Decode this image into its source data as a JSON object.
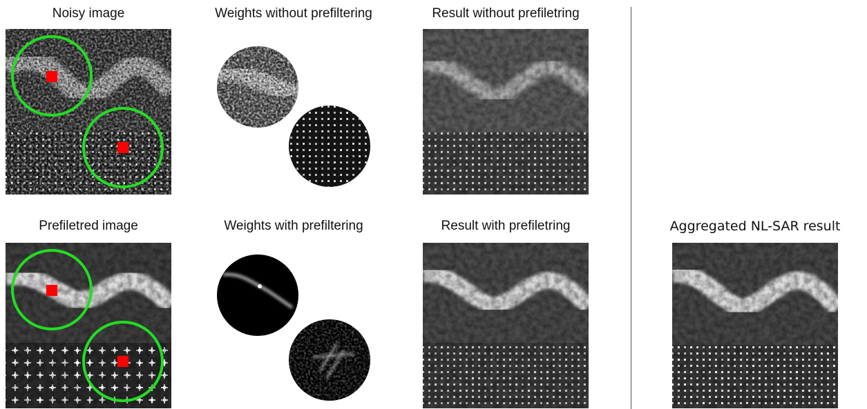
{
  "figure": {
    "captions": {
      "noisy": "Noisy image",
      "weights_without": "Weights without prefiltering",
      "result_without": "Result without prefiletring",
      "prefiltered": "Prefiletred image",
      "weights_with": "Weights with prefiltering",
      "result_with": "Result with prefiletring",
      "aggregated": "Aggregated NL-SAR result"
    },
    "colors": {
      "circle": "#22dd22",
      "marker": "#ff0000",
      "divider": "#555555"
    }
  }
}
